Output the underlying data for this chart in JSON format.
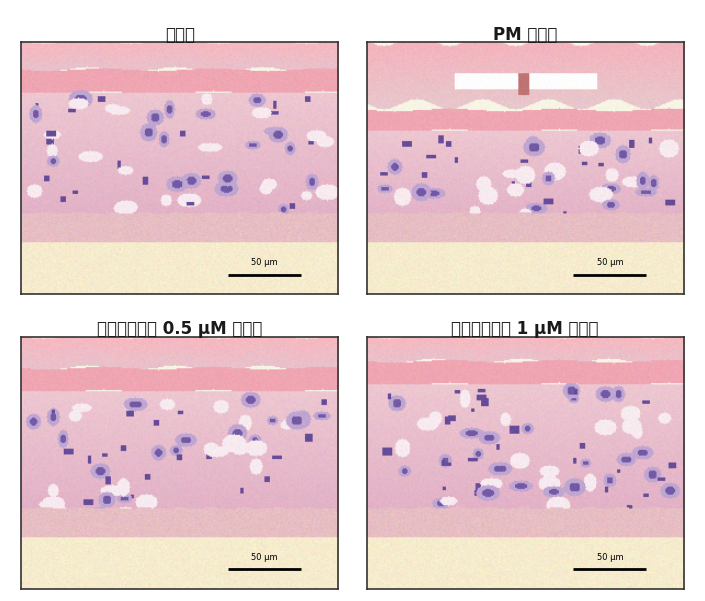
{
  "titles": [
    "정상군",
    "PM 처리군",
    "메이스리그난 0.5 μM 처리군",
    "메이스리그난 1 μM 처리군"
  ],
  "title_color": "#1a1a1a",
  "title_fontsize": 12,
  "bg_color": "#ffffff",
  "border_color": "#333333",
  "scale_bar_text": [
    "50 μm",
    "50 μm",
    "50 μm",
    "50 μm"
  ],
  "fig_width": 7.05,
  "fig_height": 6.01
}
